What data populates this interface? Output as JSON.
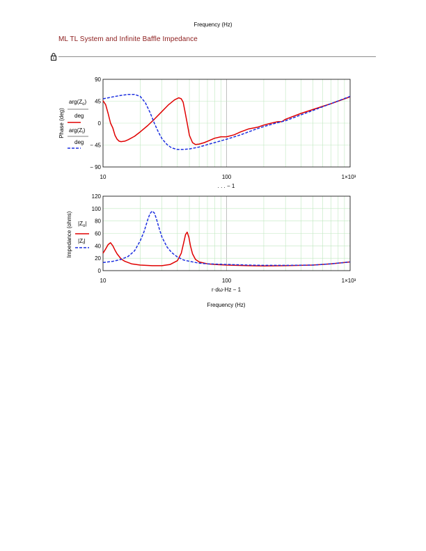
{
  "page": {
    "header_text": "Frequency (Hz)",
    "section_title": "ML TL System and Infinite Baffle Impedance"
  },
  "colors": {
    "open_series": "#e00000",
    "infinite_series": "#1c2fe0",
    "grid_minor": "#bfe8bf",
    "grid_major": "#b0b0b0",
    "title": "#8b1a1a"
  },
  "chart_data": [
    {
      "type": "line",
      "x_scale": "log",
      "xlim": [
        10,
        1000
      ],
      "ylim": [
        -90,
        90
      ],
      "x_ticks": [
        10,
        100,
        1000
      ],
      "x_tick_labels": [
        "10",
        "100",
        "1×10³"
      ],
      "y_ticks": [
        -90,
        -45,
        0,
        45,
        90
      ],
      "y_tick_labels": [
        "− 90",
        "− 45",
        "0",
        "45",
        "90"
      ],
      "ylabel": "Phase (deg)",
      "xlabel": ". . . − 1",
      "grid": true,
      "legend_placement": "left",
      "series": [
        {
          "name": "arg(Z_o) / deg",
          "style": "solid",
          "x": [
            10,
            10.5,
            11,
            11.5,
            12,
            12.5,
            13,
            13.5,
            14,
            15,
            16,
            18,
            20,
            23,
            26,
            30,
            34,
            38,
            41,
            43,
            44.5,
            46,
            48,
            50,
            53,
            56,
            60,
            66,
            72,
            80,
            90,
            100,
            115,
            130,
            150,
            165,
            180,
            200,
            230,
            260,
            280,
            300,
            400,
            500,
            700,
            1000
          ],
          "y": [
            46,
            38,
            20,
            0,
            -10,
            -25,
            -33,
            -37,
            -38,
            -37,
            -34,
            -27,
            -18,
            -5,
            8,
            24,
            38,
            48,
            52,
            50,
            43,
            25,
            0,
            -25,
            -40,
            -44,
            -43,
            -40,
            -36,
            -31,
            -28,
            -28,
            -24,
            -18,
            -12,
            -10,
            -8,
            -4,
            0,
            3,
            3,
            8,
            20,
            28,
            40,
            54
          ]
        },
        {
          "name": "arg(Z_I) / deg",
          "style": "dashed",
          "x": [
            10,
            11,
            12,
            14,
            16,
            18,
            20,
            22,
            24,
            26,
            28,
            30,
            33,
            36,
            40,
            45,
            50,
            55,
            60,
            70,
            80,
            100,
            130,
            170,
            200,
            250,
            300,
            400,
            500,
            700,
            1000
          ],
          "y": [
            50,
            52,
            54,
            57,
            59,
            59,
            55,
            42,
            22,
            0,
            -18,
            -32,
            -44,
            -51,
            -54,
            -54,
            -53,
            -51,
            -49,
            -44,
            -40,
            -33,
            -24,
            -13,
            -7,
            0,
            5,
            17,
            26,
            40,
            55
          ]
        }
      ]
    },
    {
      "type": "line",
      "x_scale": "log",
      "xlim": [
        10,
        1000
      ],
      "ylim": [
        0,
        120
      ],
      "x_ticks": [
        10,
        100,
        1000
      ],
      "x_tick_labels": [
        "10",
        "100",
        "1×10³"
      ],
      "y_ticks": [
        0,
        20,
        40,
        60,
        80,
        100,
        120
      ],
      "y_tick_labels": [
        "0",
        "20",
        "40",
        "60",
        "80",
        "100",
        "120"
      ],
      "ylabel": "Impedance (ohms)",
      "xlabel": "r·dω·Hz − 1",
      "xlabel2": "Frequency (Hz)",
      "grid": true,
      "legend_placement": "left",
      "series": [
        {
          "name": "|Z_o|",
          "style": "solid",
          "x": [
            10,
            10.5,
            11,
            11.5,
            12,
            12.5,
            13,
            14,
            15,
            17,
            20,
            25,
            30,
            35,
            40,
            43,
            45,
            46.5,
            48,
            49.5,
            51,
            53,
            56,
            60,
            70,
            80,
            100,
            150,
            200,
            300,
            500,
            700,
            1000
          ],
          "y": [
            28,
            35,
            42,
            45,
            40,
            33,
            27,
            19,
            15,
            11,
            9,
            8,
            8,
            10,
            16,
            28,
            45,
            58,
            62,
            54,
            40,
            27,
            18,
            14,
            11,
            10,
            9,
            8,
            7.5,
            8,
            9,
            11,
            14
          ]
        },
        {
          "name": "|Z_I|",
          "style": "dashed",
          "x": [
            10,
            12,
            14,
            16,
            18,
            20,
            21.5,
            23,
            24,
            25,
            26,
            27,
            28.5,
            30,
            33,
            36,
            40,
            45,
            50,
            60,
            70,
            100,
            150,
            200,
            300,
            500,
            700,
            1000
          ],
          "y": [
            13,
            15,
            18,
            23,
            32,
            48,
            63,
            82,
            92,
            96,
            93,
            84,
            68,
            54,
            38,
            29,
            22,
            17,
            15,
            12,
            11,
            10,
            9,
            8.5,
            8.5,
            9,
            11,
            14
          ]
        }
      ]
    }
  ]
}
